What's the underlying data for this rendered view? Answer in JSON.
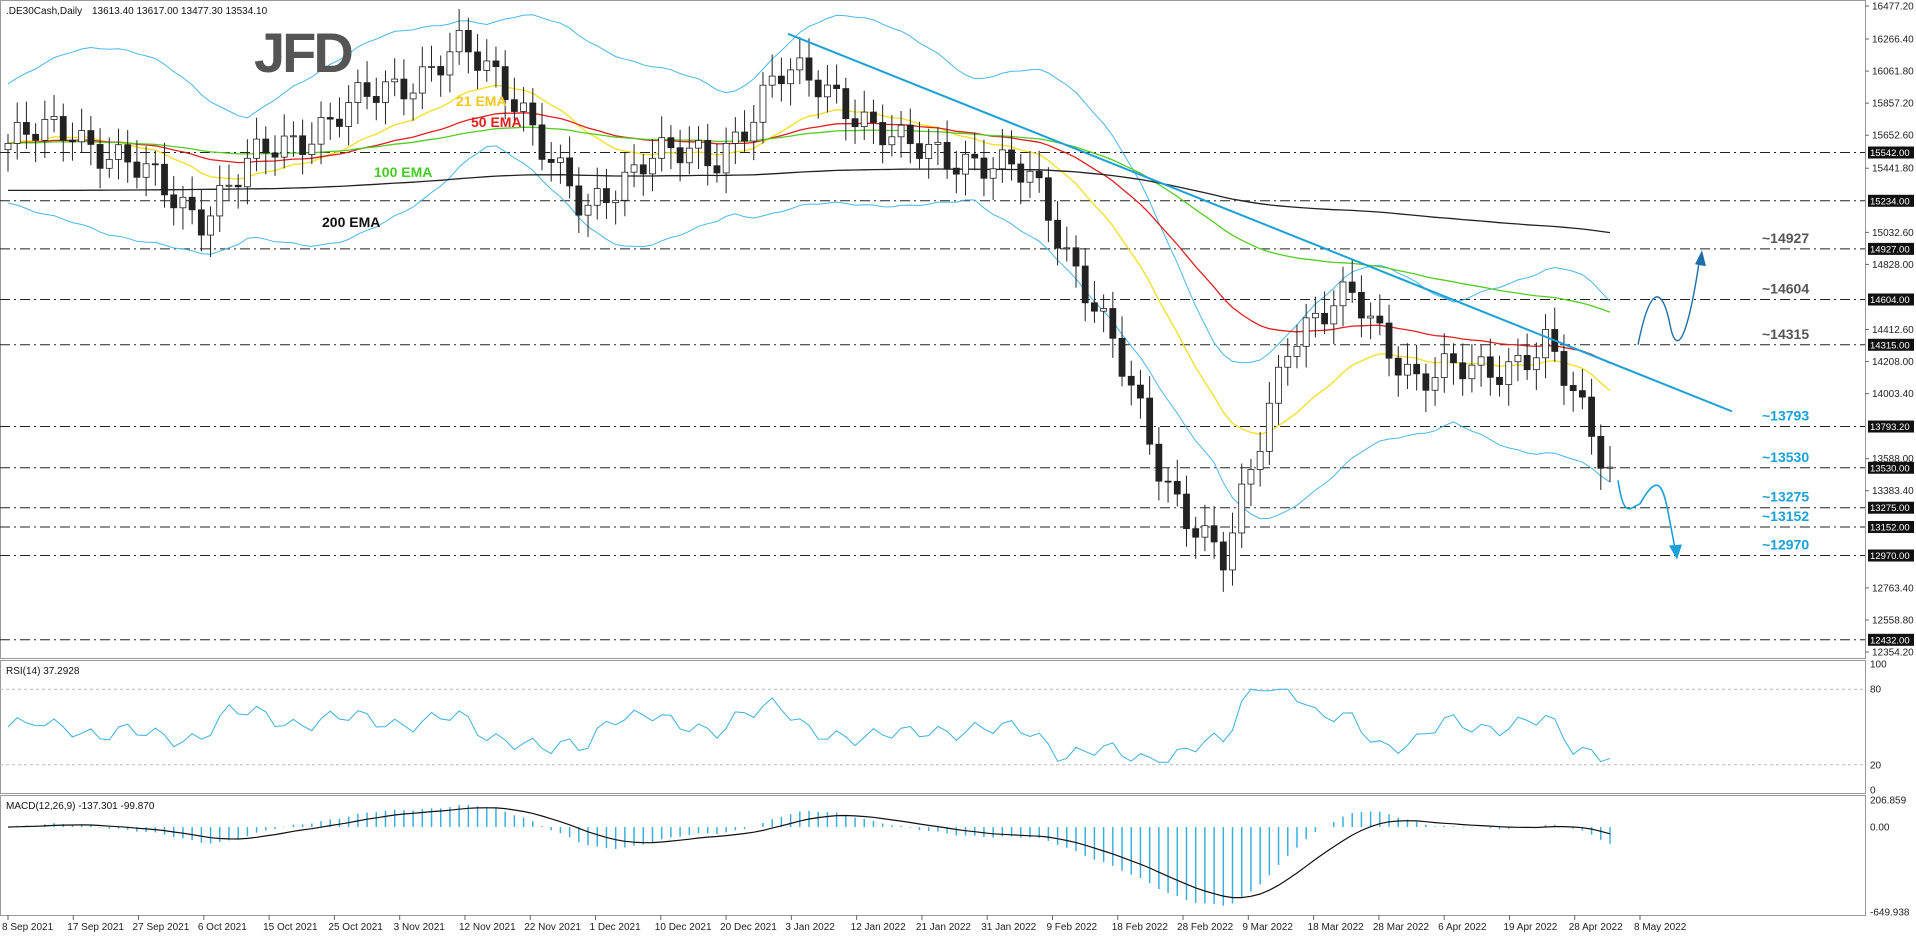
{
  "header": {
    "symbol": ".DE30Cash,Daily",
    "ohlc": "13613.40 13617.00 13477.30 13534.10"
  },
  "logo_text": "JFD",
  "colors": {
    "candle_up": "#ffffff",
    "candle_down": "#222222",
    "ema21": "#f2e01e",
    "ema50": "#e02020",
    "ema100": "#55cc22",
    "ema200": "#222222",
    "bollinger": "#4ab7e8",
    "trendline": "#1aa0d8",
    "level_label": "#1aa0d8",
    "rsi_line": "#3ab0e0",
    "macd_hist": "#3ab0e0",
    "macd_signal": "#111111"
  },
  "ema_labels": [
    {
      "id": "ema21",
      "text": "21 EMA"
    },
    {
      "id": "ema50",
      "text": "50 EMA"
    },
    {
      "id": "ema100",
      "text": "100 EMA"
    },
    {
      "id": "ema200",
      "text": "200 EMA"
    }
  ],
  "levels": [
    {
      "value": 15542.0,
      "tag": "15542.00",
      "label": ""
    },
    {
      "value": 15234.0,
      "tag": "15234.00",
      "label": ""
    },
    {
      "value": 14927.0,
      "tag": "14927.00",
      "label": "~14927"
    },
    {
      "value": 14604.0,
      "tag": "14604.00",
      "label": "~14604"
    },
    {
      "value": 14315.0,
      "tag": "14315.00",
      "label": "~14315"
    },
    {
      "value": 13793.2,
      "tag": "13793.20",
      "label": "~13793"
    },
    {
      "value": 13530.0,
      "tag": "13530.00",
      "label": "~13530"
    },
    {
      "value": 13275.0,
      "tag": "13275.00",
      "label": "~13275"
    },
    {
      "value": 13152.0,
      "tag": "13152.00",
      "label": "~13152"
    },
    {
      "value": 12970.0,
      "tag": "12970.00",
      "label": "~12970"
    },
    {
      "value": 12432.0,
      "tag": "12432.00",
      "label": ""
    }
  ],
  "price_ticks": [
    "16477.20",
    "16266.40",
    "16061.80",
    "15857.20",
    "15652.60",
    "15441.80",
    "15032.60",
    "14828.00",
    "14412.60",
    "14208.00",
    "14003.40",
    "13588.00",
    "13383.40",
    "12763.40",
    "12558.80",
    "12354.20"
  ],
  "rsi": {
    "label": "RSI(14) 37.2928",
    "ticks": [
      "100",
      "80",
      "20",
      "0"
    ]
  },
  "macd": {
    "label": "MACD(12,26,9) -137.301 -99.870",
    "ticks": [
      "206.859",
      "0.00",
      "-649.938"
    ]
  },
  "x_ticks": [
    "8 Sep 2021",
    "17 Sep 2021",
    "27 Sep 2021",
    "6 Oct 2021",
    "15 Oct 2021",
    "25 Oct 2021",
    "3 Nov 2021",
    "12 Nov 2021",
    "22 Nov 2021",
    "1 Dec 2021",
    "10 Dec 2021",
    "20 Dec 2021",
    "3 Jan 2022",
    "12 Jan 2022",
    "21 Jan 2022",
    "31 Jan 2022",
    "9 Feb 2022",
    "18 Feb 2022",
    "28 Feb 2022",
    "9 Mar 2022",
    "18 Mar 2022",
    "28 Mar 2022",
    "6 Apr 2022",
    "19 Apr 2022",
    "28 Apr 2022",
    "8 May 2022"
  ],
  "chart_data": {
    "type": "candlestick",
    "instrument": ".DE30Cash",
    "timeframe": "Daily",
    "ylim": [
      12354.2,
      16477.2
    ],
    "close_path_x": [
      "8 Sep 2021",
      "17 Sep 2021",
      "27 Sep 2021",
      "6 Oct 2021",
      "15 Oct 2021",
      "25 Oct 2021",
      "3 Nov 2021",
      "12 Nov 2021",
      "22 Nov 2021",
      "1 Dec 2021",
      "10 Dec 2021",
      "20 Dec 2021",
      "3 Jan 2022",
      "12 Jan 2022",
      "21 Jan 2022",
      "31 Jan 2022",
      "9 Feb 2022",
      "18 Feb 2022",
      "28 Feb 2022",
      "9 Mar 2022",
      "18 Mar 2022",
      "28 Mar 2022",
      "6 Apr 2022",
      "19 Apr 2022",
      "28 Apr 2022",
      "8 May 2022"
    ],
    "close_path": [
      15600,
      15700,
      15420,
      15150,
      15530,
      15750,
      15950,
      16200,
      15880,
      15100,
      15580,
      15450,
      16050,
      15900,
      15550,
      15520,
      15350,
      14550,
      13500,
      12900,
      14400,
      14600,
      14100,
      14150,
      14300,
      13534
    ]
  }
}
